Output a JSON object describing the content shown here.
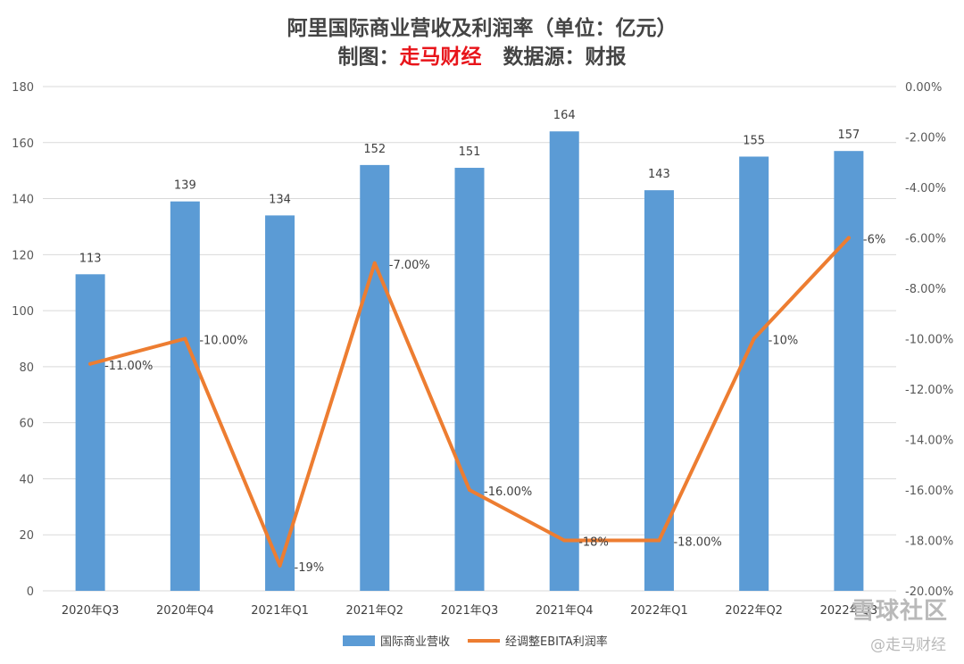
{
  "chart_data": {
    "type": "bar",
    "title": "阿里国际商业营收及利润率（单位：亿元）",
    "subtitle": {
      "prefix": "制图：",
      "brand": "走马财经",
      "suffix": "   数据源：财报"
    },
    "categories": [
      "2020年Q3",
      "2020年Q4",
      "2021年Q1",
      "2021年Q2",
      "2021年Q3",
      "2021年Q4",
      "2022年Q1",
      "2022年Q2",
      "2022年Q3"
    ],
    "series": [
      {
        "name": "国际商业营收",
        "type": "bar",
        "axis": "left",
        "color": "#5b9bd5",
        "values": [
          113,
          139,
          134,
          152,
          151,
          164,
          143,
          155,
          157
        ],
        "labels": [
          "113",
          "139",
          "134",
          "152",
          "151",
          "164",
          "143",
          "155",
          "157"
        ]
      },
      {
        "name": "经调整EBITA利润率",
        "type": "line",
        "axis": "right",
        "color": "#ed7d31",
        "values": [
          -11,
          -10,
          -19,
          -7,
          -16,
          -18,
          -18,
          -10,
          -6
        ],
        "labels": [
          "-11.00%",
          "-10.00%",
          "-19%",
          "-7.00%",
          "-16.00%",
          "-18%",
          "-18.00%",
          "-10%",
          "-6%"
        ]
      }
    ],
    "y_left": {
      "min": 0,
      "max": 180,
      "ticks": [
        "0",
        "20",
        "40",
        "60",
        "80",
        "100",
        "120",
        "140",
        "160",
        "180"
      ]
    },
    "y_right": {
      "min": -20,
      "max": 0,
      "ticks": [
        "-20.00%",
        "-18.00%",
        "-16.00%",
        "-14.00%",
        "-12.00%",
        "-10.00%",
        "-8.00%",
        "-6.00%",
        "-4.00%",
        "-2.00%",
        "0.00%"
      ]
    },
    "grid": true,
    "legend_position": "bottom-center"
  },
  "watermark": {
    "main": "雪球社区",
    "sub": "@走马财经"
  }
}
